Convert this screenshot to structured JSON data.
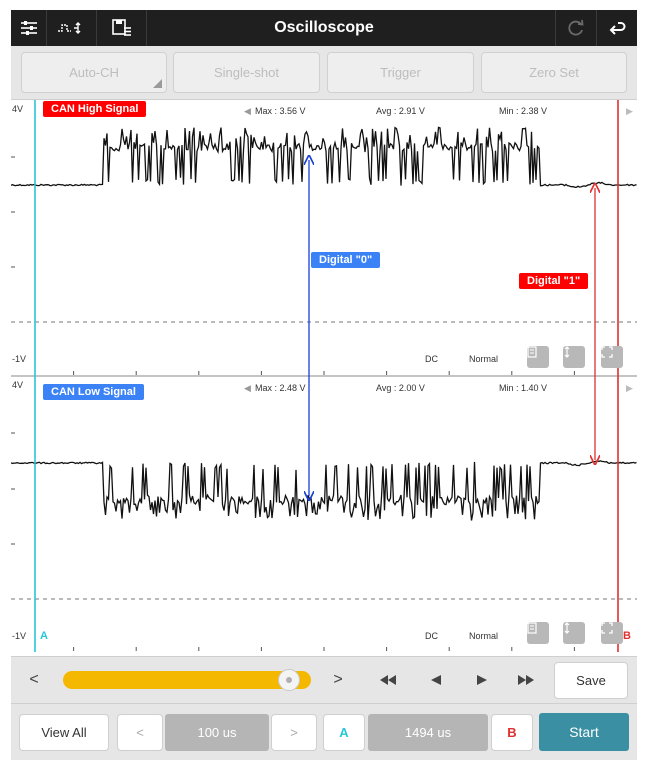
{
  "header": {
    "title": "Oscilloscope",
    "icons": [
      "sliders-icon",
      "signal-adjust-icon",
      "save-file-icon",
      "refresh-icon",
      "back-icon"
    ]
  },
  "toolbar": {
    "auto_ch": "Auto-CH",
    "single_shot": "Single-shot",
    "trigger": "Trigger",
    "zero_set": "Zero Set"
  },
  "channel1": {
    "name": "CAN High Signal",
    "top_label": "4V",
    "bottom_label": "-1V",
    "max": "Max : 3.56 V",
    "avg": "Avg : 2.91 V",
    "min": "Min : 2.38 V",
    "coupling": "DC",
    "mode": "Normal",
    "color": "#ff0000"
  },
  "channel2": {
    "name": "CAN Low Signal",
    "top_label": "4V",
    "bottom_label": "-1V",
    "max": "Max : 2.48 V",
    "avg": "Avg : 2.00 V",
    "min": "Min : 1.40 V",
    "coupling": "DC",
    "mode": "Normal",
    "color": "#3b82f6"
  },
  "annotations": {
    "digital0": "Digital \"0\"",
    "digital1": "Digital \"1\""
  },
  "cursors": {
    "a_label": "A",
    "b_label": "B",
    "a_color": "#27c6d6",
    "b_color": "#e03030"
  },
  "controls": {
    "prev": "<",
    "next": ">",
    "slider_position": 0.95,
    "save": "Save",
    "view_all": "View All",
    "time_prev": "<",
    "time_next": ">",
    "timebase": "100 us",
    "cursor_a": "A",
    "cursor_delta": "1494 us",
    "cursor_b": "B",
    "start": "Start",
    "slider_color": "#f5b800",
    "start_color": "#3a8fa3"
  }
}
